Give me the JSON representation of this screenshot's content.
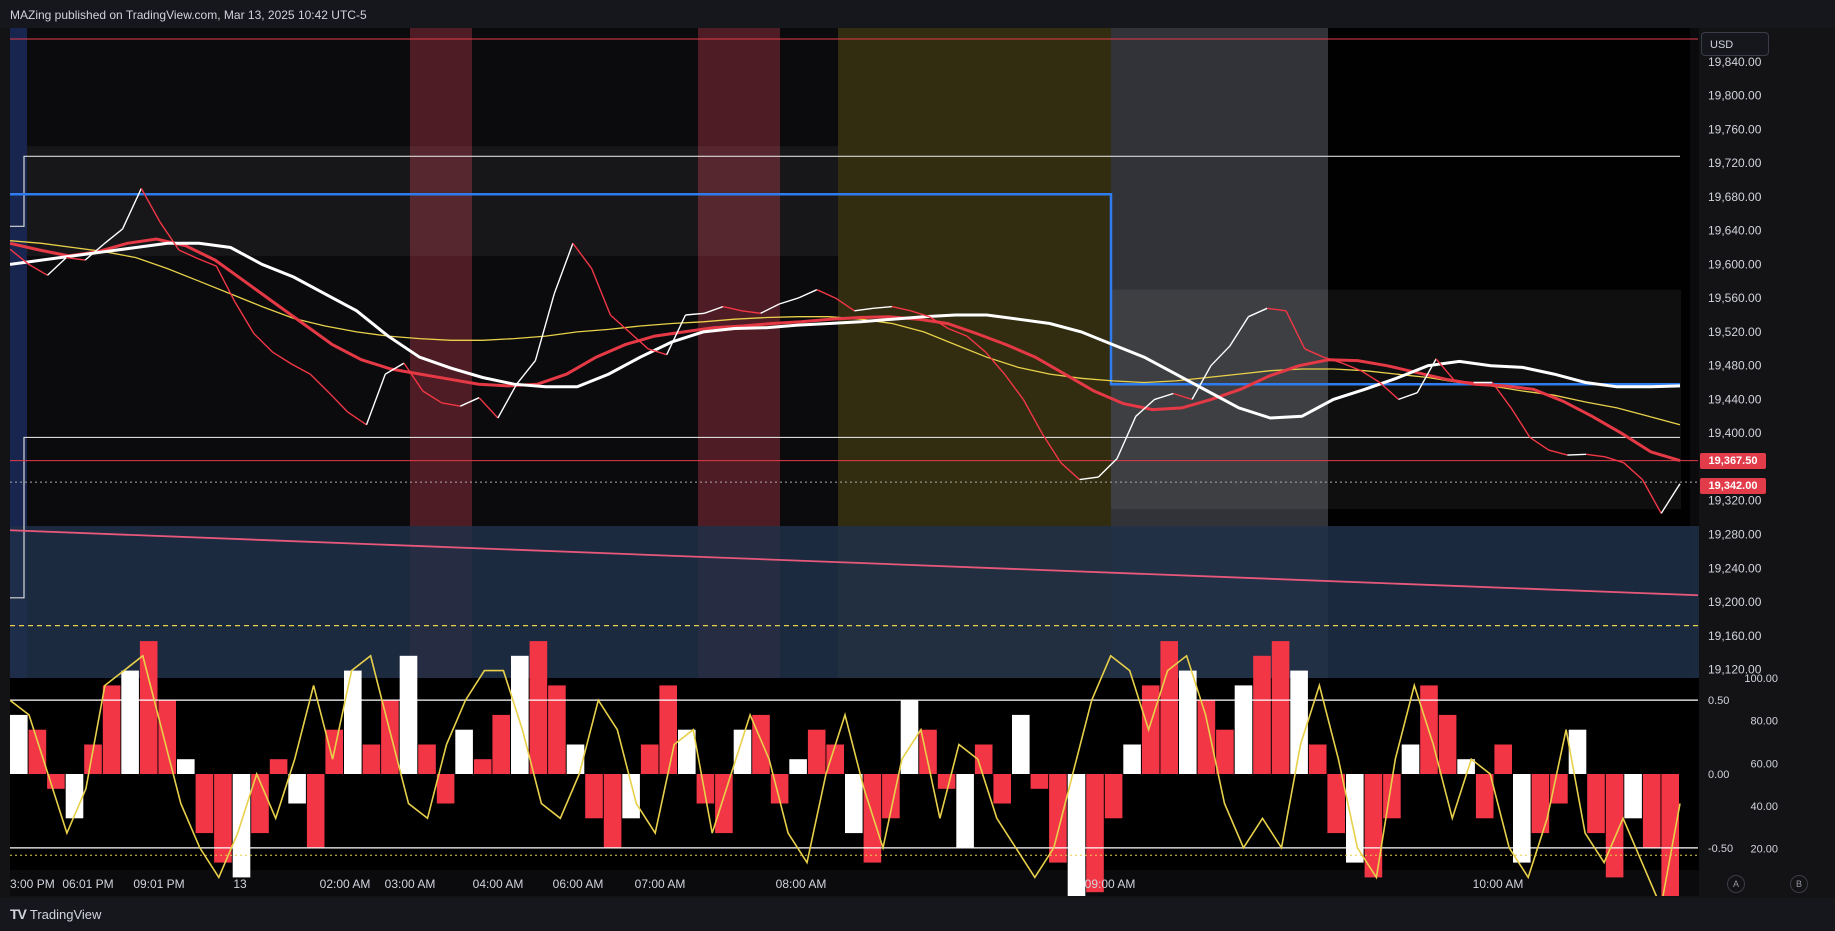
{
  "header": {
    "publish_line": "MAZing published on TradingView.com, Mar 13, 2025 10:42 UTC-5"
  },
  "price_axis": {
    "currency_button": "USD",
    "ticks": [
      "19,840.00",
      "19,800.00",
      "19,760.00",
      "19,720.00",
      "19,680.00",
      "19,640.00",
      "19,600.00",
      "19,560.00",
      "19,520.00",
      "19,480.00",
      "19,440.00",
      "19,400.00",
      "19,320.00",
      "19,280.00",
      "19,240.00",
      "19,200.00",
      "19,160.00",
      "19,120.00"
    ],
    "tags": [
      {
        "label": "19,367.50",
        "value": 19367.5,
        "color": "#e23b4a"
      },
      {
        "label": "19,342.00",
        "value": 19342.0,
        "color": "#e23b4a"
      }
    ]
  },
  "oscillator_axis": {
    "left_ticks": [
      "0.50",
      "0.00",
      "-0.50"
    ],
    "right_ticks": [
      "100.00",
      "80.00",
      "60.00",
      "40.00",
      "20.00"
    ]
  },
  "time_axis": {
    "ticks": [
      "3:00 PM",
      "06:01 PM",
      "09:01 PM",
      "13",
      "02:00 AM",
      "03:00 AM",
      "04:00 AM",
      "06:00 AM",
      "07:00 AM",
      "08:00 AM",
      "09:00 AM",
      "10:00 AM"
    ]
  },
  "footer": {
    "brand": "TradingView",
    "logo_mark": "TV",
    "scale_buttons": [
      "A",
      "B"
    ]
  },
  "colors": {
    "background": "#0b0b0e",
    "bull_bar": "#ffffff",
    "bear_bar": "#f23645",
    "ema_fast": "#ffffff",
    "ema_red": "#e53945",
    "ema_yellow": "#e8d04a",
    "level_blue": "#2f7bf0",
    "session_red": "#5a2028",
    "session_yellow": "#3a3412",
    "session_grey": "#3a3b40",
    "session_blue": "#203049"
  },
  "chart_data": {
    "type": "line",
    "symbol_price_range": [
      19110,
      19880
    ],
    "ylim": [
      19110,
      19880
    ],
    "reference_levels": {
      "top_red": 19867,
      "white_upper": 19728,
      "blue_upper": 19683,
      "blue_lower": 19458,
      "white_lower": 19395,
      "red_current": 19367.5,
      "last_price": 19342,
      "dashed_yellow": 19172
    },
    "price_series": {
      "name": "",
      "points": [
        19618,
        19600,
        19587,
        19608,
        19605,
        19624,
        19642,
        19690,
        19650,
        19617,
        19607,
        19598,
        19555,
        19518,
        19496,
        19482,
        19470,
        19448,
        19425,
        19410,
        19470,
        19483,
        19450,
        19436,
        19432,
        19442,
        19418,
        19458,
        19486,
        19565,
        19625,
        19595,
        19540,
        19520,
        19500,
        19493,
        19540,
        19542,
        19550,
        19545,
        19542,
        19553,
        19560,
        19570,
        19560,
        19545,
        19548,
        19550,
        19545,
        19538,
        19524,
        19515,
        19496,
        19470,
        19440,
        19400,
        19365,
        19345,
        19348,
        19370,
        19420,
        19440,
        19447,
        19440,
        19480,
        19503,
        19538,
        19548,
        19545,
        19500,
        19490,
        19483,
        19474,
        19460,
        19440,
        19448,
        19488,
        19462,
        19460,
        19460,
        19430,
        19395,
        19380,
        19374,
        19375,
        19372,
        19365,
        19345,
        19305,
        19340
      ]
    },
    "ema_white_series": {
      "name": "",
      "points": [
        19600,
        19605,
        19610,
        19615,
        19620,
        19625,
        19625,
        19620,
        19600,
        19585,
        19565,
        19545,
        19515,
        19490,
        19477,
        19466,
        19458,
        19455,
        19455,
        19470,
        19490,
        19508,
        19520,
        19524,
        19525,
        19528,
        19530,
        19532,
        19535,
        19538,
        19540,
        19540,
        19535,
        19530,
        19520,
        19505,
        19490,
        19470,
        19450,
        19430,
        19418,
        19420,
        19440,
        19452,
        19465,
        19480,
        19485,
        19480,
        19478,
        19470,
        19460,
        19455,
        19455,
        19456
      ]
    },
    "ema_red_series": {
      "name": "",
      "points": [
        19625,
        19617,
        19610,
        19615,
        19625,
        19630,
        19622,
        19605,
        19580,
        19555,
        19530,
        19505,
        19487,
        19476,
        19470,
        19464,
        19458,
        19456,
        19458,
        19470,
        19490,
        19505,
        19515,
        19520,
        19525,
        19527,
        19530,
        19532,
        19535,
        19537,
        19538,
        19535,
        19530,
        19518,
        19505,
        19490,
        19470,
        19450,
        19435,
        19428,
        19430,
        19440,
        19452,
        19468,
        19480,
        19487,
        19486,
        19480,
        19472,
        19464,
        19458,
        19456,
        19452,
        19438,
        19420,
        19400,
        19378,
        19367.5
      ]
    },
    "ema_yellow_series": {
      "name": "",
      "points": [
        19628,
        19625,
        19620,
        19615,
        19608,
        19595,
        19580,
        19565,
        19550,
        19536,
        19527,
        19520,
        19515,
        19512,
        19510,
        19510,
        19512,
        19515,
        19520,
        19523,
        19527,
        19530,
        19532,
        19535,
        19537,
        19538,
        19538,
        19535,
        19530,
        19520,
        19505,
        19490,
        19478,
        19470,
        19465,
        19462,
        19460,
        19462,
        19466,
        19470,
        19474,
        19476,
        19476,
        19474,
        19470,
        19466,
        19460,
        19456,
        19450,
        19445,
        19437,
        19430,
        19420,
        19410
      ]
    },
    "pink_trendline": {
      "start": 19285,
      "end": 19208
    },
    "oscillator": {
      "left_axis_range": [
        -0.65,
        0.65
      ],
      "right_axis_range": [
        10,
        100
      ],
      "bars": [
        0.4,
        0.3,
        -0.1,
        -0.3,
        0.2,
        0.6,
        0.7,
        0.9,
        0.5,
        0.1,
        -0.4,
        -0.6,
        -0.7,
        -0.4,
        0.1,
        -0.2,
        -0.5,
        0.3,
        0.7,
        0.2,
        0.5,
        0.8,
        0.2,
        -0.2,
        0.3,
        0.1,
        0.4,
        0.8,
        0.9,
        0.6,
        0.2,
        -0.3,
        -0.5,
        -0.3,
        0.2,
        0.6,
        0.3,
        -0.2,
        -0.4,
        0.3,
        0.4,
        -0.2,
        0.1,
        0.3,
        0.2,
        -0.4,
        -0.6,
        -0.3,
        0.5,
        0.3,
        -0.1,
        -0.5,
        0.2,
        -0.2,
        0.4,
        -0.1,
        -0.6,
        -0.9,
        -0.8,
        -0.3,
        0.2,
        0.6,
        0.9,
        0.7,
        0.5,
        0.3,
        0.6,
        0.8,
        0.9,
        0.7,
        0.2,
        -0.4,
        -0.6,
        -0.7,
        -0.3,
        0.2,
        0.6,
        0.4,
        0.1,
        -0.3,
        0.2,
        -0.6,
        -0.4,
        -0.2,
        0.3,
        -0.4,
        -0.7,
        -0.3,
        -0.5,
        -0.9
      ],
      "signal": [
        0.5,
        0.4,
        0.0,
        -0.4,
        -0.1,
        0.6,
        0.7,
        0.8,
        0.3,
        -0.2,
        -0.5,
        -0.7,
        -0.4,
        0.0,
        -0.3,
        0.1,
        0.6,
        0.1,
        0.7,
        0.8,
        0.3,
        -0.2,
        -0.3,
        0.2,
        0.5,
        0.7,
        0.7,
        0.3,
        -0.2,
        -0.3,
        0.0,
        0.5,
        0.3,
        -0.2,
        -0.4,
        0.2,
        0.3,
        -0.4,
        0.0,
        0.4,
        0.1,
        -0.4,
        -0.6,
        0.0,
        0.4,
        -0.1,
        -0.5,
        0.1,
        0.3,
        -0.3,
        0.2,
        0.1,
        -0.3,
        -0.5,
        -0.7,
        -0.5,
        0.0,
        0.5,
        0.8,
        0.7,
        0.3,
        0.7,
        0.8,
        0.4,
        -0.2,
        -0.5,
        -0.3,
        -0.5,
        0.2,
        0.6,
        0.1,
        -0.5,
        -0.7,
        0.1,
        0.6,
        0.2,
        -0.3,
        0.1,
        0.0,
        -0.5,
        -0.7,
        -0.3,
        0.3,
        -0.4,
        -0.6,
        -0.3,
        -0.6,
        -0.9,
        -0.2
      ]
    }
  }
}
